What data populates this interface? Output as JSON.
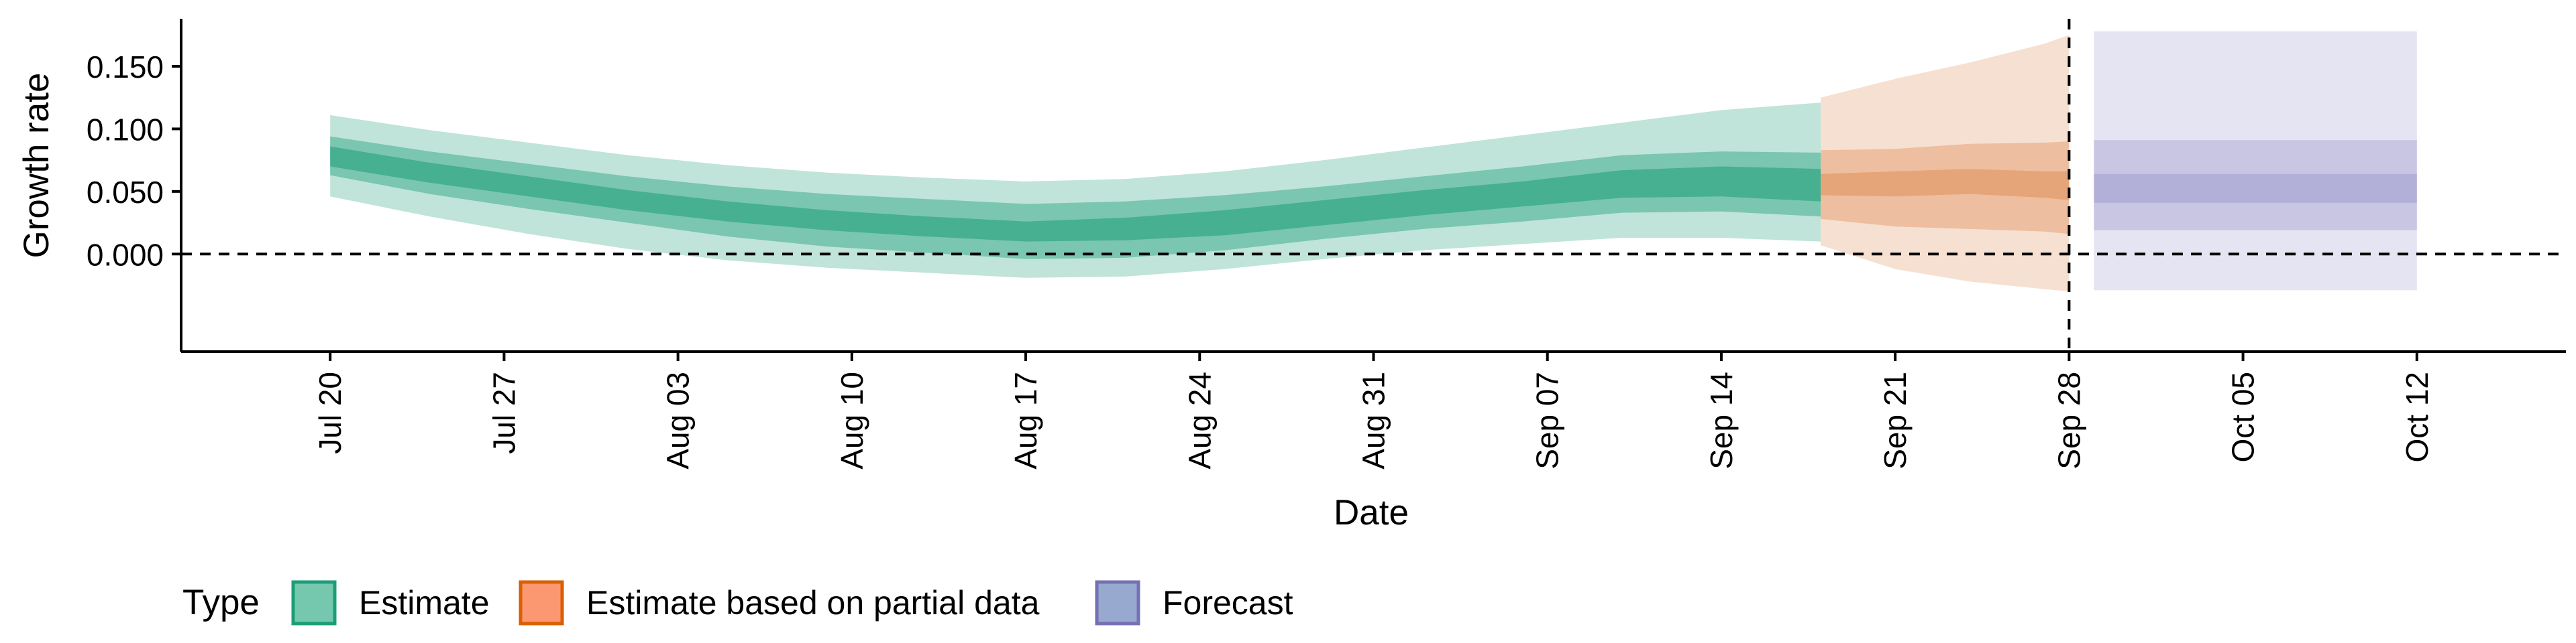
{
  "chart_data": {
    "type": "area",
    "title": "",
    "xlabel": "Date",
    "ylabel": "Growth rate",
    "xlim": [
      "2020-07-14",
      "2020-10-18"
    ],
    "ylim": [
      -0.078,
      0.188
    ],
    "yticks": [
      0.0,
      0.05,
      0.1,
      0.15
    ],
    "ytick_labels": [
      "0.000",
      "0.050",
      "0.100",
      "0.150"
    ],
    "xticks": [
      "2020-07-20",
      "2020-07-27",
      "2020-08-03",
      "2020-08-10",
      "2020-08-17",
      "2020-08-24",
      "2020-08-31",
      "2020-09-07",
      "2020-09-14",
      "2020-09-21",
      "2020-09-28",
      "2020-10-05",
      "2020-10-12"
    ],
    "xtick_labels": [
      "Jul 20",
      "Jul 27",
      "Aug 03",
      "Aug 10",
      "Aug 17",
      "Aug 24",
      "Aug 31",
      "Sep 07",
      "Sep 14",
      "Sep 21",
      "Sep 28",
      "Oct 05",
      "Oct 12"
    ],
    "hline": 0.0,
    "vline": "2020-09-28",
    "grid": false,
    "legend": {
      "title": "Type",
      "position": "bottom",
      "entries": [
        "Estimate",
        "Estimate based on partial data",
        "Forecast"
      ]
    },
    "series": [
      {
        "name": "Estimate",
        "color": "#66c2a5",
        "fill": "#1b9e77",
        "stroke": "#1b9e77",
        "x": [
          "2020-07-20",
          "2020-07-24",
          "2020-07-28",
          "2020-08-01",
          "2020-08-05",
          "2020-08-09",
          "2020-08-13",
          "2020-08-17",
          "2020-08-21",
          "2020-08-25",
          "2020-08-29",
          "2020-09-02",
          "2020-09-06",
          "2020-09-10",
          "2020-09-14",
          "2020-09-18"
        ],
        "median": [
          0.078,
          0.065,
          0.054,
          0.043,
          0.034,
          0.027,
          0.022,
          0.018,
          0.02,
          0.025,
          0.033,
          0.041,
          0.048,
          0.056,
          0.058,
          0.055
        ],
        "lower_20": [
          0.07,
          0.057,
          0.046,
          0.035,
          0.026,
          0.019,
          0.014,
          0.01,
          0.011,
          0.015,
          0.023,
          0.031,
          0.038,
          0.045,
          0.046,
          0.042
        ],
        "upper_20": [
          0.086,
          0.073,
          0.062,
          0.051,
          0.042,
          0.035,
          0.03,
          0.026,
          0.029,
          0.035,
          0.043,
          0.051,
          0.058,
          0.067,
          0.07,
          0.068
        ],
        "lower_50": [
          0.063,
          0.048,
          0.036,
          0.025,
          0.014,
          0.006,
          0.001,
          -0.004,
          -0.003,
          0.003,
          0.012,
          0.02,
          0.026,
          0.033,
          0.034,
          0.03
        ],
        "upper_50": [
          0.094,
          0.082,
          0.072,
          0.062,
          0.054,
          0.048,
          0.044,
          0.04,
          0.042,
          0.047,
          0.054,
          0.062,
          0.07,
          0.079,
          0.082,
          0.081
        ],
        "lower_90": [
          0.046,
          0.03,
          0.016,
          0.004,
          -0.005,
          -0.011,
          -0.015,
          -0.019,
          -0.018,
          -0.012,
          -0.004,
          0.003,
          0.008,
          0.013,
          0.013,
          0.01
        ],
        "upper_90": [
          0.111,
          0.099,
          0.089,
          0.079,
          0.071,
          0.065,
          0.061,
          0.058,
          0.06,
          0.066,
          0.075,
          0.085,
          0.095,
          0.105,
          0.115,
          0.121
        ]
      },
      {
        "name": "Estimate based on partial data",
        "color": "#fc8d62",
        "fill": "#e0905a",
        "stroke": "#d95f02",
        "x": [
          "2020-09-18",
          "2020-09-21",
          "2020-09-24",
          "2020-09-27",
          "2020-09-28"
        ],
        "median": [
          0.055,
          0.055,
          0.057,
          0.055,
          0.054
        ],
        "lower_20": [
          0.047,
          0.046,
          0.048,
          0.045,
          0.043
        ],
        "upper_20": [
          0.064,
          0.066,
          0.068,
          0.066,
          0.066
        ],
        "lower_50": [
          0.028,
          0.022,
          0.02,
          0.018,
          0.016
        ],
        "upper_50": [
          0.083,
          0.084,
          0.088,
          0.089,
          0.09
        ],
        "lower_90": [
          0.007,
          -0.012,
          -0.022,
          -0.028,
          -0.03
        ],
        "upper_90": [
          0.125,
          0.14,
          0.153,
          0.168,
          0.175
        ]
      },
      {
        "name": "Forecast",
        "color": "#8da0cb",
        "fill": "#a09ecf",
        "stroke": "#7570b3",
        "x": [
          "2020-09-29",
          "2020-10-12"
        ],
        "median": [
          0.052,
          0.052
        ],
        "lower_20": [
          0.041,
          0.041
        ],
        "upper_20": [
          0.064,
          0.064
        ],
        "lower_50": [
          0.019,
          0.019
        ],
        "upper_50": [
          0.091,
          0.091
        ],
        "lower_90": [
          -0.029,
          -0.029
        ],
        "upper_90": [
          0.178,
          0.178
        ]
      }
    ]
  }
}
